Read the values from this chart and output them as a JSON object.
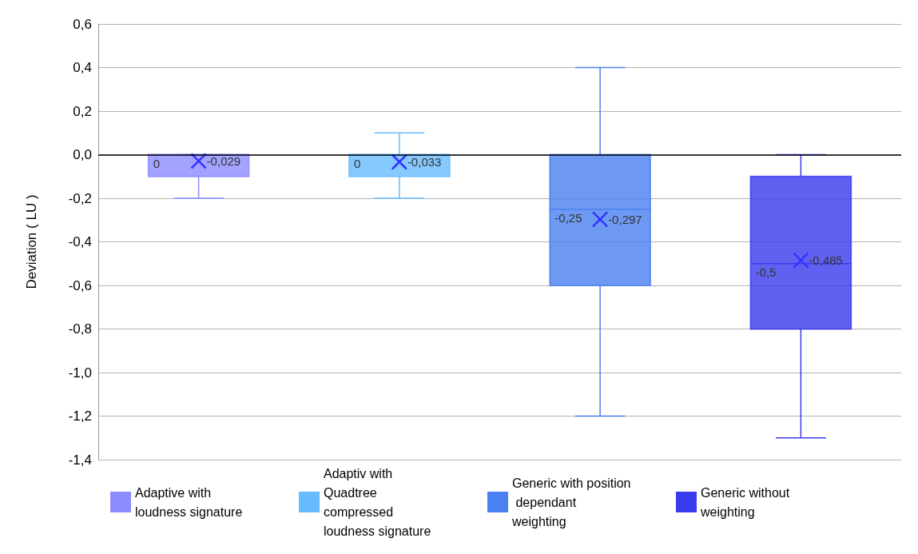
{
  "chart_data": {
    "type": "box",
    "ylabel": "Deviation ( LU )",
    "categories": [
      null,
      null,
      null,
      null
    ],
    "series": [
      {
        "name": "Adaptive with loudness signature",
        "color": "#8c8cff",
        "boxes": [
          {
            "low": -0.2,
            "q1": -0.1,
            "median": 0,
            "q3": 0,
            "high": 0,
            "mean": -0.029
          },
          null,
          null,
          null
        ],
        "value_labels": [
          [
            "0",
            "-0,029"
          ],
          null,
          null,
          null
        ]
      },
      {
        "name": "Adaptiv with Quadtree compressed loudness signature",
        "color": "#66bbff",
        "boxes": [
          null,
          {
            "low": -0.2,
            "q1": -0.1,
            "median": 0,
            "q3": 0,
            "high": 0.1,
            "mean": -0.033
          },
          null,
          null
        ],
        "value_labels": [
          null,
          [
            "0",
            "-0,033"
          ],
          null,
          null
        ]
      },
      {
        "name": "Generic with position dependant weighting",
        "color": "#4a80f0",
        "boxes": [
          null,
          null,
          {
            "low": -1.2,
            "q1": -0.6,
            "median": -0.25,
            "q3": 0,
            "high": 0.4,
            "mean": -0.297
          },
          null
        ],
        "value_labels": [
          null,
          null,
          [
            "-0,25",
            "-0,297"
          ],
          null
        ]
      },
      {
        "name": "Generic without weighting",
        "color": "#3a3aee",
        "boxes": [
          null,
          null,
          null,
          {
            "low": -1.3,
            "q1": -0.8,
            "median": -0.5,
            "q3": -0.1,
            "high": 0,
            "mean": -0.485
          }
        ],
        "value_labels": [
          null,
          null,
          null,
          [
            "-0,5",
            "-0,485"
          ]
        ]
      }
    ],
    "ylim": [
      -1.4,
      0.6
    ],
    "yticks": [
      {
        "value": -1.4,
        "label": "-1,4"
      },
      {
        "value": -1.2,
        "label": "-1,2"
      },
      {
        "value": -1,
        "label": "-1,0"
      },
      {
        "value": -0.8,
        "label": "-0,8"
      },
      {
        "value": -0.6,
        "label": "-0,6"
      },
      {
        "value": -0.4,
        "label": "-0,4"
      },
      {
        "value": -0.2,
        "label": "-0,2"
      },
      {
        "value": 0,
        "label": "0,0"
      },
      {
        "value": 0.2,
        "label": "0,2"
      },
      {
        "value": 0.4,
        "label": "0,4"
      },
      {
        "value": 0.6,
        "label": "0,6"
      }
    ],
    "ref_lines": [
      {
        "axis": "y",
        "value": 0,
        "color": "#000000"
      }
    ],
    "grid": "y",
    "legend": "bottom",
    "marker": "cross",
    "tick_labels": "y"
  }
}
